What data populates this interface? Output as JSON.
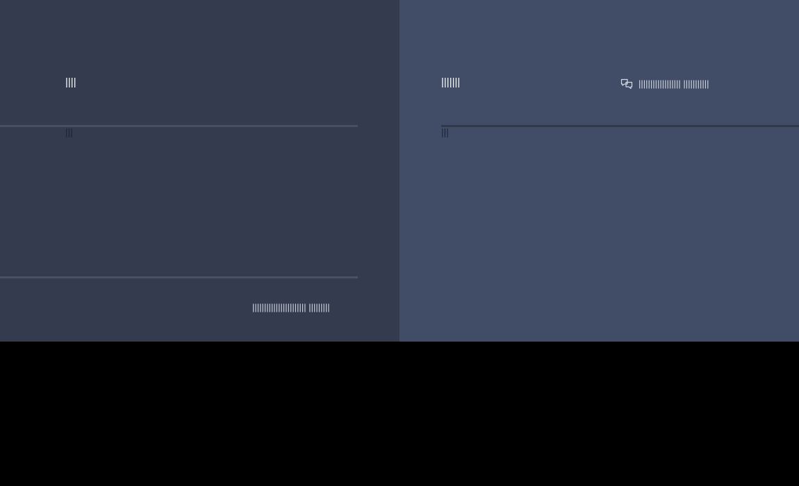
{
  "colors": {
    "background": "#000000",
    "left_panel": "#343b4f",
    "right_panel": "#414c67",
    "heading_text": "#ffffff",
    "subheading_text": "#1b2232",
    "muted_text": "#d7dbe4"
  },
  "left_panel": {
    "heading": "||||",
    "subheading": "|||",
    "footer_text": "||||||||||||||||||||||| |||||||||"
  },
  "right_panel": {
    "heading": "|||||||",
    "subheading": "|||",
    "comment_icon": "chat-bubbles-icon",
    "comment_text": "|||||||||||||||||| |||||||||||"
  }
}
